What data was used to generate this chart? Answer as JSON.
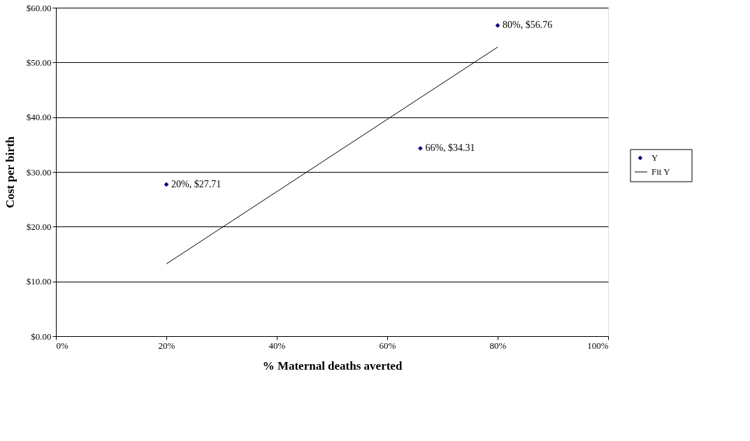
{
  "chart_data": {
    "type": "scatter",
    "xlabel": "% Maternal deaths averted",
    "ylabel": "Cost per birth",
    "x": [
      20,
      66,
      80
    ],
    "series": [
      {
        "name": "Y",
        "color": "#000080",
        "marker": "diamond",
        "values": [
          27.71,
          34.31,
          56.76
        ],
        "value_labels": [
          "20%, $27.71",
          "66%, $34.31",
          "80%, $56.76"
        ]
      },
      {
        "name": "Fit Y",
        "type": "line",
        "color": "#000000",
        "x": [
          20,
          80
        ],
        "values": [
          13.2,
          52.8
        ]
      }
    ],
    "xlim": [
      0,
      100
    ],
    "xticks": [
      {
        "value": 0,
        "label": "0%"
      },
      {
        "value": 20,
        "label": "20%"
      },
      {
        "value": 40,
        "label": "40%"
      },
      {
        "value": 60,
        "label": "60%"
      },
      {
        "value": 80,
        "label": "80%"
      },
      {
        "value": 100,
        "label": "100%"
      }
    ],
    "ylim": [
      0,
      60
    ],
    "yticks": [
      {
        "value": 0,
        "label": "$0.00"
      },
      {
        "value": 10,
        "label": "$10.00"
      },
      {
        "value": 20,
        "label": "$20.00"
      },
      {
        "value": 30,
        "label": "$30.00"
      },
      {
        "value": 40,
        "label": "$40.00"
      },
      {
        "value": 50,
        "label": "$50.00"
      },
      {
        "value": 60,
        "label": "$60.00"
      }
    ],
    "grid": "y",
    "legend": "right"
  }
}
